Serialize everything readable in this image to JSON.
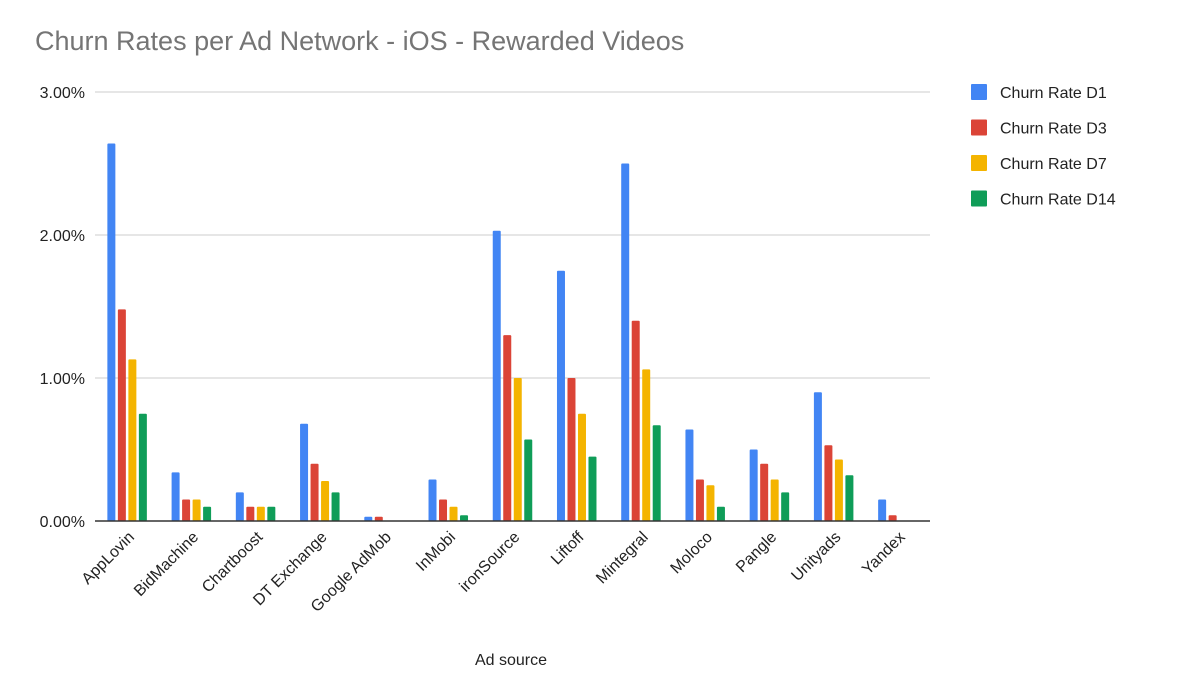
{
  "chart_data": {
    "type": "bar",
    "title": "Churn Rates per Ad Network - iOS - Rewarded Videos",
    "xlabel": "Ad source",
    "ylabel": "",
    "ylim": [
      0,
      3
    ],
    "yticks": [
      "0.00%",
      "1.00%",
      "2.00%",
      "3.00%"
    ],
    "ytick_values": [
      0,
      1,
      2,
      3
    ],
    "grid": true,
    "legend_position": "right",
    "categories": [
      "AppLovin",
      "BidMachine",
      "Chartboost",
      "DT Exchange",
      "Google AdMob",
      "InMobi",
      "ironSource",
      "Liftoff",
      "Mintegral",
      "Moloco",
      "Pangle",
      "Unityads",
      "Yandex"
    ],
    "series": [
      {
        "name": "Churn Rate D1",
        "color": "#4285F4",
        "values": [
          2.64,
          0.34,
          0.2,
          0.68,
          0.03,
          0.29,
          2.03,
          1.75,
          2.5,
          0.64,
          0.5,
          0.9,
          0.15
        ]
      },
      {
        "name": "Churn Rate D3",
        "color": "#DB4437",
        "values": [
          1.48,
          0.15,
          0.1,
          0.4,
          0.03,
          0.15,
          1.3,
          1.0,
          1.4,
          0.29,
          0.4,
          0.53,
          0.04
        ]
      },
      {
        "name": "Churn Rate D7",
        "color": "#F4B400",
        "values": [
          1.13,
          0.15,
          0.1,
          0.28,
          0,
          0.1,
          1.0,
          0.75,
          1.06,
          0.25,
          0.29,
          0.43,
          0
        ]
      },
      {
        "name": "Churn Rate D14",
        "color": "#0F9D58",
        "values": [
          0.75,
          0.1,
          0.1,
          0.2,
          0,
          0.04,
          0.57,
          0.45,
          0.67,
          0.1,
          0.2,
          0.32,
          0
        ]
      }
    ]
  }
}
